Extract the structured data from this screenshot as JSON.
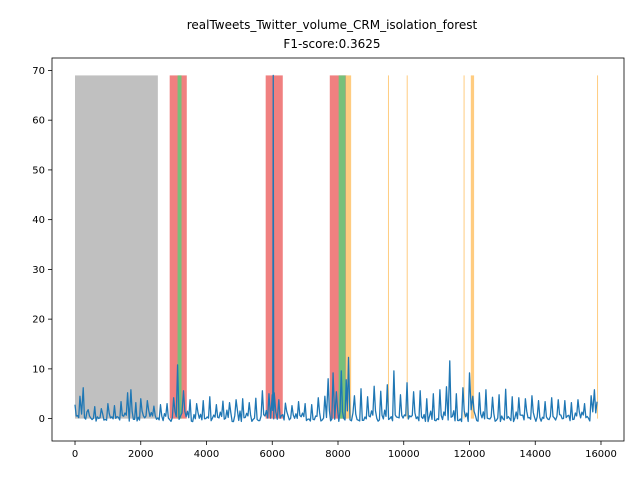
{
  "chart_data": {
    "type": "line",
    "title": "realTweets_Twitter_volume_CRM_isolation_forest",
    "subtitle": "F1-score:0.3625",
    "xlabel": "",
    "ylabel": "",
    "xlim": [
      -700,
      16700
    ],
    "ylim": [
      -4.5,
      72.5
    ],
    "xticks": [
      0,
      2000,
      4000,
      6000,
      8000,
      10000,
      12000,
      14000,
      16000
    ],
    "yticks": [
      0,
      10,
      20,
      30,
      40,
      50,
      60,
      70
    ],
    "grid": false,
    "band_top": 69,
    "colors": {
      "series": "#1f77b4",
      "probation": "#c0c0c0",
      "anomaly_window": "#f08080",
      "true_positive": "#77c07a",
      "false_positive": "#ffcc80",
      "axes": "#000000"
    },
    "regions": {
      "probation": [
        [
          0,
          2520
        ]
      ],
      "anomaly_windows": [
        [
          2880,
          3400
        ],
        [
          5800,
          6320
        ],
        [
          7750,
          8270
        ]
      ],
      "true_positives": [
        [
          3120,
          3240
        ],
        [
          8020,
          8230
        ]
      ],
      "false_positives": [
        [
          8240,
          8400
        ],
        [
          9520,
          9540
        ],
        [
          10090,
          10110
        ],
        [
          11820,
          11840
        ],
        [
          12040,
          12140
        ],
        [
          15880,
          15900
        ]
      ]
    },
    "series": [
      {
        "points": [
          [
            0,
            2.8
          ],
          [
            150,
            4.5
          ],
          [
            250,
            6.2
          ],
          [
            400,
            1.8
          ],
          [
            600,
            2.4
          ],
          [
            800,
            2.0
          ],
          [
            1000,
            3.0
          ],
          [
            1200,
            2.6
          ],
          [
            1400,
            3.4
          ],
          [
            1600,
            5.2
          ],
          [
            1700,
            5.8
          ],
          [
            1850,
            3.2
          ],
          [
            2000,
            4.0
          ],
          [
            2200,
            3.6
          ],
          [
            2400,
            2.5
          ],
          [
            2600,
            2.8
          ],
          [
            2800,
            3.0
          ],
          [
            3000,
            4.2
          ],
          [
            3120,
            10.8
          ],
          [
            3300,
            5.6
          ],
          [
            3500,
            3.8
          ],
          [
            3700,
            3.0
          ],
          [
            3900,
            3.6
          ],
          [
            4100,
            4.4
          ],
          [
            4300,
            2.8
          ],
          [
            4500,
            3.5
          ],
          [
            4700,
            3.2
          ],
          [
            4900,
            3.8
          ],
          [
            5100,
            4.0
          ],
          [
            5300,
            3.2
          ],
          [
            5500,
            4.1
          ],
          [
            5700,
            5.6
          ],
          [
            5900,
            5.0
          ],
          [
            6000,
            4.8
          ],
          [
            6030,
            69.0
          ],
          [
            6060,
            5.2
          ],
          [
            6200,
            3.8
          ],
          [
            6400,
            3.1
          ],
          [
            6600,
            2.6
          ],
          [
            6800,
            3.4
          ],
          [
            7000,
            3.0
          ],
          [
            7200,
            2.8
          ],
          [
            7400,
            4.2
          ],
          [
            7600,
            4.5
          ],
          [
            7700,
            8.0
          ],
          [
            7850,
            9.2
          ],
          [
            7950,
            5.4
          ],
          [
            8100,
            9.6
          ],
          [
            8250,
            7.8
          ],
          [
            8320,
            12.3
          ],
          [
            8500,
            4.6
          ],
          [
            8700,
            6.0
          ],
          [
            8900,
            4.4
          ],
          [
            9100,
            6.5
          ],
          [
            9300,
            5.5
          ],
          [
            9500,
            6.8
          ],
          [
            9700,
            9.6
          ],
          [
            9900,
            4.8
          ],
          [
            10100,
            7.2
          ],
          [
            10300,
            5.4
          ],
          [
            10500,
            5.6
          ],
          [
            10700,
            4.0
          ],
          [
            10900,
            5.0
          ],
          [
            11100,
            5.8
          ],
          [
            11300,
            6.4
          ],
          [
            11400,
            11.6
          ],
          [
            11600,
            5.0
          ],
          [
            11800,
            6.2
          ],
          [
            12000,
            9.2
          ],
          [
            12100,
            4.5
          ],
          [
            12300,
            5.2
          ],
          [
            12500,
            5.8
          ],
          [
            12700,
            4.3
          ],
          [
            12900,
            4.8
          ],
          [
            13100,
            5.9
          ],
          [
            13300,
            4.4
          ],
          [
            13500,
            4.2
          ],
          [
            13700,
            4.0
          ],
          [
            13900,
            4.6
          ],
          [
            14100,
            3.6
          ],
          [
            14300,
            3.4
          ],
          [
            14500,
            4.2
          ],
          [
            14700,
            3.8
          ],
          [
            14900,
            3.6
          ],
          [
            15100,
            3.2
          ],
          [
            15300,
            3.8
          ],
          [
            15500,
            3.0
          ],
          [
            15700,
            4.6
          ],
          [
            15800,
            5.8
          ],
          [
            15880,
            3.4
          ]
        ]
      }
    ]
  }
}
